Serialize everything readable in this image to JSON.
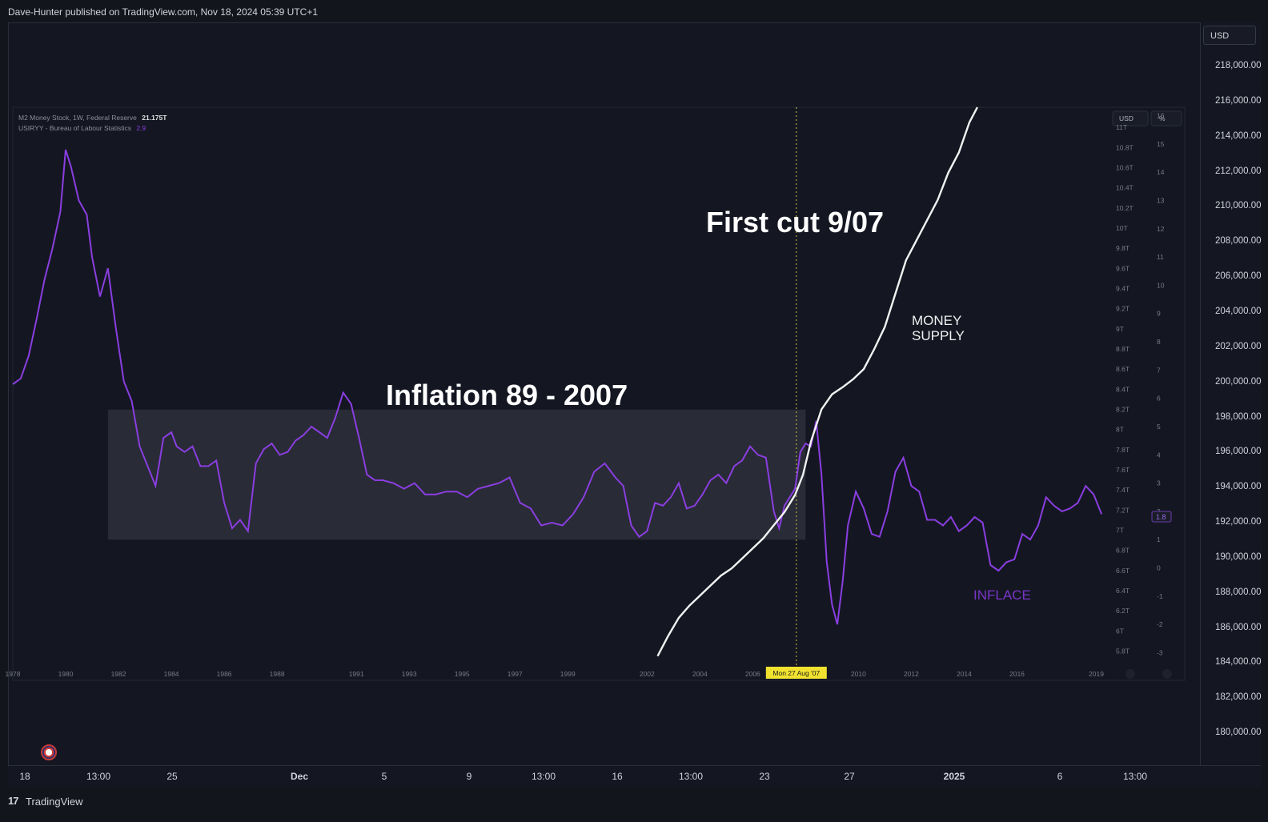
{
  "header": {
    "published_by": "Dave-Hunter published on TradingView.com, Nov 18, 2024 05:39 UTC+1"
  },
  "footer": {
    "brand_logo": "17",
    "brand_name": "TradingView"
  },
  "outer_scale": {
    "currency_button": "USD",
    "price_labels": [
      "218,000.00",
      "216,000.00",
      "214,000.00",
      "212,000.00",
      "210,000.00",
      "208,000.00",
      "206,000.00",
      "204,000.00",
      "202,000.00",
      "200,000.00",
      "198,000.00",
      "196,000.00",
      "194,000.00",
      "192,000.00",
      "190,000.00",
      "188,000.00",
      "186,000.00",
      "184,000.00",
      "182,000.00",
      "180,000.00"
    ],
    "time_labels": [
      "18",
      "13:00",
      "25",
      "Dec",
      "5",
      "9",
      "13:00",
      "16",
      "13:00",
      "23",
      "27",
      "2025",
      "6",
      "13:00"
    ]
  },
  "colors": {
    "background": "#141722",
    "inflation": "#8a3ee0",
    "money": "#f2f2f2",
    "band": "#2b2d38",
    "crosshair": "#c9c14a",
    "crosshair_label": "#f2e230"
  },
  "chart_data": {
    "type": "line",
    "title": "",
    "xlabel": "",
    "ylabel": "",
    "legend": [
      {
        "label": "M2 Money Stock, 1W, Federal Reserve",
        "value": "21.175T"
      },
      {
        "label": "USIRYY - Bureau of Labour Statistics",
        "value": "2.9"
      }
    ],
    "x_range": [
      1978,
      2019.5
    ],
    "x_ticks": [
      "1978",
      "1980",
      "1982",
      "1984",
      "1986",
      "1988",
      "1991",
      "1993",
      "1995",
      "1997",
      "1999",
      "2002",
      "2004",
      "2006",
      "2010",
      "2012",
      "2014",
      "2016",
      "2019"
    ],
    "x_tick_values": [
      1978,
      1980,
      1982,
      1984,
      1986,
      1988,
      1991,
      1993,
      1995,
      1997,
      1999,
      2002,
      2004,
      2006,
      2010,
      2012,
      2014,
      2016,
      2019
    ],
    "crosshair": {
      "x": 2007.65,
      "label": "Mon 27 Aug '07"
    },
    "left_scale": {
      "unit_button": "USD",
      "ylim": [
        5.7,
        11.2
      ],
      "tick_labels": [
        "11T",
        "10.8T",
        "10.6T",
        "10.4T",
        "10.2T",
        "10T",
        "9.8T",
        "9.6T",
        "9.4T",
        "9.2T",
        "9T",
        "8.8T",
        "8.6T",
        "8.4T",
        "8.2T",
        "8T",
        "7.8T",
        "7.6T",
        "7.4T",
        "7.2T",
        "7T",
        "6.8T",
        "6.6T",
        "6.4T",
        "6.2T",
        "6T",
        "5.8T"
      ]
    },
    "right_scale": {
      "unit_button": "%",
      "ylim": [
        -3.3,
        16.3
      ],
      "tick_labels": [
        "16",
        "15",
        "14",
        "13",
        "12",
        "11",
        "10",
        "9",
        "8",
        "7",
        "6",
        "5",
        "4",
        "3",
        "2",
        "1",
        "0",
        "-1",
        "-2",
        "-3"
      ],
      "current_value_label": "1.8"
    },
    "series": [
      {
        "name": "Inflation (USIRYY)",
        "axis": "right",
        "x": [
          1978.0,
          1978.3,
          1978.6,
          1978.9,
          1979.2,
          1979.5,
          1979.8,
          1980.0,
          1980.2,
          1980.5,
          1980.8,
          1981.0,
          1981.3,
          1981.6,
          1981.9,
          1982.2,
          1982.5,
          1982.8,
          1983.1,
          1983.4,
          1983.7,
          1984.0,
          1984.2,
          1984.5,
          1984.8,
          1985.1,
          1985.4,
          1985.7,
          1986.0,
          1986.3,
          1986.6,
          1986.9,
          1987.2,
          1987.5,
          1987.8,
          1988.1,
          1988.4,
          1988.7,
          1989.0,
          1989.3,
          1989.6,
          1989.9,
          1990.2,
          1990.5,
          1990.8,
          1991.1,
          1991.4,
          1991.7,
          1992.0,
          1992.4,
          1992.8,
          1993.2,
          1993.6,
          1994.0,
          1994.4,
          1994.8,
          1995.2,
          1995.6,
          1996.0,
          1996.4,
          1996.8,
          1997.2,
          1997.6,
          1998.0,
          1998.4,
          1998.8,
          1999.2,
          1999.6,
          2000.0,
          2000.4,
          2000.8,
          2001.1,
          2001.4,
          2001.7,
          2002.0,
          2002.3,
          2002.6,
          2002.9,
          2003.2,
          2003.5,
          2003.8,
          2004.1,
          2004.4,
          2004.7,
          2005.0,
          2005.3,
          2005.6,
          2005.9,
          2006.2,
          2006.5,
          2006.8,
          2007.0,
          2007.2,
          2007.4,
          2007.6,
          2007.8,
          2008.0,
          2008.2,
          2008.4,
          2008.6,
          2008.8,
          2009.0,
          2009.2,
          2009.4,
          2009.6,
          2009.9,
          2010.2,
          2010.5,
          2010.8,
          2011.1,
          2011.4,
          2011.7,
          2012.0,
          2012.3,
          2012.6,
          2012.9,
          2013.2,
          2013.5,
          2013.8,
          2014.1,
          2014.4,
          2014.7,
          2015.0,
          2015.3,
          2015.6,
          2015.9,
          2016.2,
          2016.5,
          2016.8,
          2017.1,
          2017.4,
          2017.7,
          2018.0,
          2018.3,
          2018.6,
          2018.9,
          2019.2
        ],
        "values": [
          6.5,
          6.7,
          7.5,
          8.8,
          10.2,
          11.3,
          12.6,
          14.8,
          14.2,
          13.0,
          12.5,
          11.0,
          9.6,
          10.6,
          8.5,
          6.6,
          5.9,
          4.3,
          3.6,
          2.9,
          4.6,
          4.8,
          4.3,
          4.1,
          4.3,
          3.6,
          3.6,
          3.8,
          2.3,
          1.4,
          1.7,
          1.3,
          3.7,
          4.2,
          4.4,
          4.0,
          4.1,
          4.5,
          4.7,
          5.0,
          4.8,
          4.6,
          5.3,
          6.2,
          5.8,
          4.6,
          3.3,
          3.1,
          3.1,
          3.0,
          2.8,
          3.0,
          2.6,
          2.6,
          2.7,
          2.7,
          2.5,
          2.8,
          2.9,
          3.0,
          3.2,
          2.3,
          2.1,
          1.5,
          1.6,
          1.5,
          1.9,
          2.5,
          3.4,
          3.7,
          3.2,
          2.9,
          1.5,
          1.1,
          1.3,
          2.3,
          2.2,
          2.5,
          3.0,
          2.1,
          2.2,
          2.6,
          3.1,
          3.3,
          3.0,
          3.6,
          3.8,
          4.3,
          4.0,
          3.9,
          2.0,
          1.4,
          2.2,
          2.5,
          2.8,
          4.1,
          4.4,
          4.3,
          5.2,
          3.3,
          0.2,
          -1.3,
          -2.0,
          -0.5,
          1.5,
          2.7,
          2.1,
          1.2,
          1.1,
          2.0,
          3.4,
          3.9,
          2.9,
          2.7,
          1.7,
          1.7,
          1.5,
          1.8,
          1.3,
          1.5,
          1.8,
          1.6,
          0.1,
          -0.1,
          0.2,
          0.3,
          1.2,
          1.0,
          1.5,
          2.5,
          2.2,
          2.0,
          2.1,
          2.3,
          2.9,
          2.6,
          1.9
        ]
      },
      {
        "name": "M2 Money Stock",
        "axis": "left",
        "x": [
          2002.4,
          2002.8,
          2003.2,
          2003.6,
          2004.0,
          2004.4,
          2004.8,
          2005.2,
          2005.6,
          2006.0,
          2006.4,
          2006.8,
          2007.2,
          2007.6,
          2007.9,
          2008.2,
          2008.6,
          2009.0,
          2009.4,
          2009.8,
          2010.2,
          2010.6,
          2011.0,
          2011.4,
          2011.8,
          2012.2,
          2012.6,
          2013.0,
          2013.4,
          2013.8,
          2014.2,
          2014.5
        ],
        "values": [
          5.75,
          5.95,
          6.13,
          6.25,
          6.35,
          6.45,
          6.55,
          6.62,
          6.72,
          6.82,
          6.92,
          7.05,
          7.18,
          7.35,
          7.55,
          7.88,
          8.2,
          8.35,
          8.42,
          8.5,
          8.6,
          8.8,
          9.02,
          9.35,
          9.68,
          9.88,
          10.08,
          10.28,
          10.55,
          10.75,
          11.05,
          11.25
        ]
      }
    ],
    "annotations": [
      {
        "text": "Inflation 89 - 2007",
        "type": "rectangle",
        "x_range": [
          1981.6,
          2008.0
        ],
        "y_range_right": [
          1.0,
          5.6
        ]
      },
      {
        "text": "First cut 9/07"
      },
      {
        "text": "MONEY"
      },
      {
        "text": "SUPPLY"
      },
      {
        "text": "INFLACE"
      }
    ]
  }
}
